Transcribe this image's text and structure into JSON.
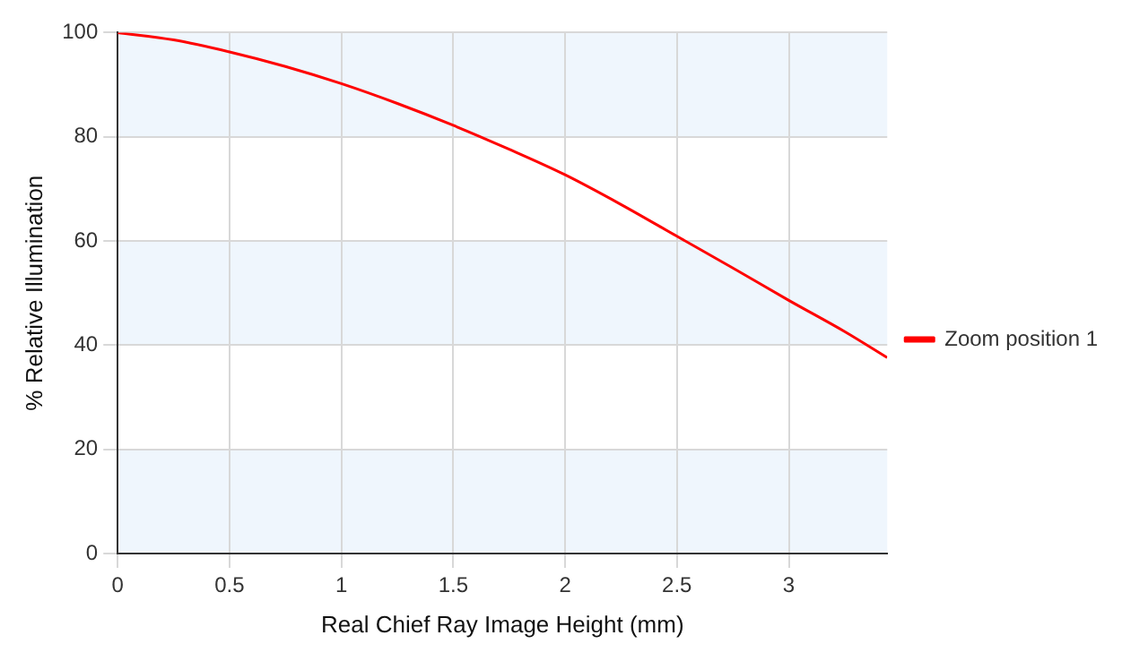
{
  "chart_data": {
    "type": "line",
    "xlabel": "Real Chief Ray Image Height (mm)",
    "ylabel": "% Relative Illumination",
    "x": [
      0,
      0.25,
      0.5,
      0.75,
      1,
      1.25,
      1.5,
      1.75,
      2,
      2.25,
      2.5,
      2.75,
      3,
      3.25,
      3.44
    ],
    "series": [
      {
        "name": "Zoom position 1",
        "color": "#ff0000",
        "values": [
          100,
          98.6,
          96.3,
          93.5,
          90.2,
          86.4,
          82.2,
          77.6,
          72.7,
          67.0,
          60.9,
          54.8,
          48.6,
          42.6,
          37.6
        ]
      }
    ],
    "xlim": [
      0,
      3.44
    ],
    "xticks": [
      0,
      0.5,
      1,
      1.5,
      2,
      2.5,
      3
    ],
    "ylim": [
      0,
      100
    ],
    "yticks": [
      0,
      20,
      40,
      60,
      80,
      100
    ],
    "bands": [
      {
        "axis": "y",
        "from": 0,
        "to": 20,
        "color": "#eff6fd"
      },
      {
        "axis": "y",
        "from": 40,
        "to": 60,
        "color": "#eff6fd"
      },
      {
        "axis": "y",
        "from": 80,
        "to": 100,
        "color": "#eff6fd"
      }
    ],
    "grid": true,
    "legend": "right",
    "marker": "none",
    "line_style": "solid"
  }
}
